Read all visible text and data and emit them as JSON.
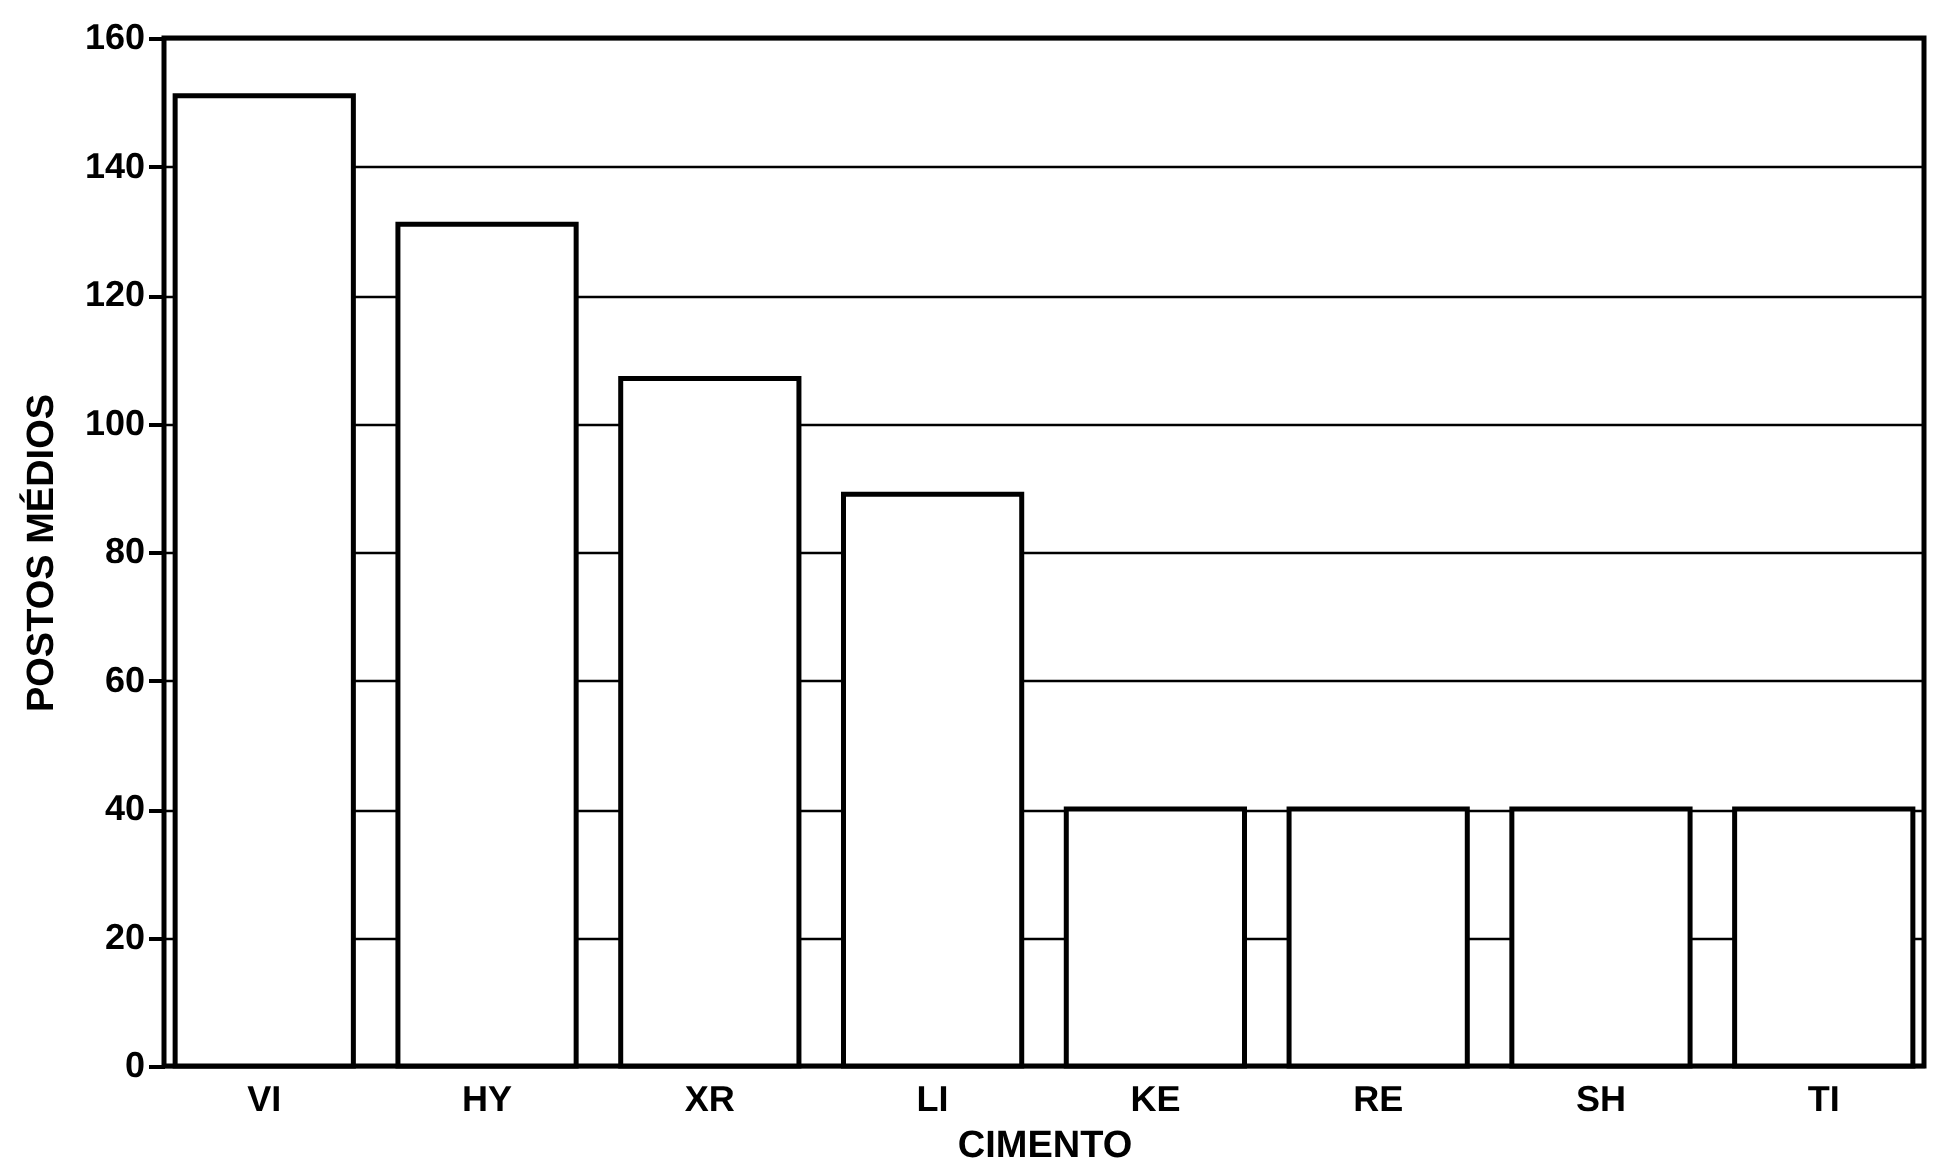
{
  "chart_data": {
    "type": "bar",
    "xlabel": "CIMENTO",
    "ylabel": "POSTOS MÉDIOS",
    "categories": [
      "VI",
      "HY",
      "XR",
      "LI",
      "KE",
      "RE",
      "SH",
      "TI"
    ],
    "values": [
      151,
      131,
      107,
      89,
      40,
      40,
      40,
      40
    ],
    "color": "#ffffff",
    "ylim": [
      0,
      160
    ],
    "yticks": [
      0,
      20,
      40,
      60,
      80,
      100,
      120,
      140,
      160
    ],
    "grid": "y"
  }
}
